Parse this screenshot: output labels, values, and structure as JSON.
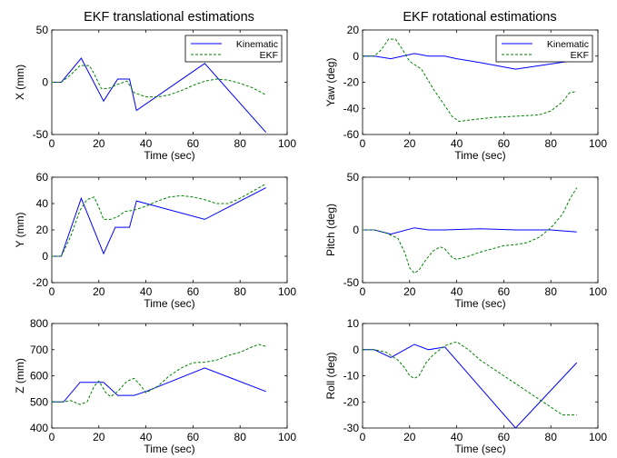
{
  "figure": {
    "titles": [
      "EKF translational estimations",
      "EKF rotational estimations"
    ]
  },
  "chart_data": [
    {
      "type": "line",
      "panel": "x-translation",
      "xlabel": "Time (sec)",
      "ylabel": "X (mm)",
      "xlim": [
        0,
        100
      ],
      "ylim": [
        -50,
        50
      ],
      "xticks": [
        0,
        20,
        40,
        60,
        80,
        100
      ],
      "yticks": [
        -50,
        0,
        50
      ],
      "legend": "top-right",
      "series": [
        {
          "name": "Kinematic",
          "color": "#0000ff",
          "style": "solid",
          "x": [
            0,
            4,
            12.5,
            22,
            28,
            33,
            36,
            65,
            91
          ],
          "y": [
            0,
            0,
            23,
            -18,
            3,
            3,
            -27,
            18,
            -48
          ]
        },
        {
          "name": "EKF",
          "color": "#008000",
          "style": "dashed",
          "x": [
            0,
            4,
            8,
            12,
            16,
            18,
            21,
            24,
            28,
            32,
            35,
            40,
            45,
            50,
            55,
            60,
            65,
            70,
            75,
            80,
            85,
            91
          ],
          "y": [
            0,
            0,
            7,
            16,
            16,
            8,
            -6,
            -6,
            -2,
            1,
            -10,
            -14,
            -14,
            -12,
            -8,
            -3,
            1,
            3,
            2,
            -1,
            -5,
            -12
          ]
        }
      ]
    },
    {
      "type": "line",
      "panel": "yaw-rotation",
      "xlabel": "Time (sec)",
      "ylabel": "Yaw (deg)",
      "xlim": [
        0,
        100
      ],
      "ylim": [
        -60,
        20
      ],
      "xticks": [
        0,
        20,
        40,
        60,
        80,
        100
      ],
      "yticks": [
        -60,
        -40,
        -20,
        0,
        20
      ],
      "legend": "top-right",
      "series": [
        {
          "name": "Kinematic",
          "color": "#0000ff",
          "style": "solid",
          "x": [
            0,
            5,
            12,
            22,
            28,
            35,
            40,
            50,
            65,
            80,
            91
          ],
          "y": [
            0,
            0,
            -2,
            2,
            0,
            0,
            -2,
            -5,
            -10,
            -6,
            -3
          ]
        },
        {
          "name": "EKF",
          "color": "#008000",
          "style": "dashed",
          "x": [
            0,
            5,
            8,
            11,
            14,
            17,
            20,
            25,
            30,
            35,
            38,
            41,
            45,
            55,
            65,
            75,
            80,
            85,
            88,
            91
          ],
          "y": [
            0,
            0,
            5,
            13,
            13,
            5,
            -4,
            -10,
            -25,
            -38,
            -46,
            -50,
            -49,
            -47,
            -46,
            -45,
            -42,
            -35,
            -28,
            -27
          ]
        }
      ]
    },
    {
      "type": "line",
      "panel": "y-translation",
      "xlabel": "Time (sec)",
      "ylabel": "Y (mm)",
      "xlim": [
        0,
        100
      ],
      "ylim": [
        -20,
        60
      ],
      "xticks": [
        0,
        20,
        40,
        60,
        80,
        100
      ],
      "yticks": [
        -20,
        0,
        20,
        40,
        60
      ],
      "series": [
        {
          "name": "Kinematic",
          "color": "#0000ff",
          "style": "solid",
          "x": [
            0,
            4,
            12.5,
            22,
            27,
            33,
            36,
            65,
            91
          ],
          "y": [
            0,
            0,
            44,
            2,
            22,
            22,
            42,
            28,
            52
          ]
        },
        {
          "name": "EKF",
          "color": "#008000",
          "style": "dashed",
          "x": [
            0,
            4,
            8,
            12,
            15,
            18,
            20,
            22,
            25,
            28,
            31,
            35,
            40,
            45,
            50,
            55,
            60,
            65,
            70,
            75,
            80,
            85,
            91
          ],
          "y": [
            0,
            0,
            15,
            35,
            43,
            45,
            37,
            28,
            28,
            30,
            34,
            35,
            38,
            42,
            45,
            46,
            45,
            43,
            40,
            40,
            44,
            49,
            55
          ]
        }
      ]
    },
    {
      "type": "line",
      "panel": "pitch-rotation",
      "xlabel": "Time (sec)",
      "ylabel": "Pitch (deg)",
      "xlim": [
        0,
        100
      ],
      "ylim": [
        -50,
        50
      ],
      "xticks": [
        0,
        20,
        40,
        60,
        80,
        100
      ],
      "yticks": [
        -50,
        0,
        50
      ],
      "series": [
        {
          "name": "Kinematic",
          "color": "#0000ff",
          "style": "solid",
          "x": [
            0,
            5,
            12,
            22,
            28,
            35,
            50,
            65,
            80,
            91
          ],
          "y": [
            0,
            0,
            -4,
            2,
            0,
            0,
            1,
            0,
            0,
            -2
          ]
        },
        {
          "name": "EKF",
          "color": "#008000",
          "style": "dashed",
          "x": [
            0,
            5,
            10,
            15,
            18,
            20,
            22,
            24,
            27,
            30,
            33,
            35,
            38,
            40,
            45,
            50,
            55,
            60,
            65,
            70,
            75,
            80,
            85,
            88,
            91
          ],
          "y": [
            0,
            0,
            -3,
            -8,
            -22,
            -36,
            -41,
            -38,
            -28,
            -20,
            -16,
            -18,
            -26,
            -28,
            -25,
            -21,
            -18,
            -15,
            -14,
            -12,
            -7,
            2,
            15,
            29,
            40
          ]
        }
      ]
    },
    {
      "type": "line",
      "panel": "z-translation",
      "xlabel": "Time (sec)",
      "ylabel": "Z (mm)",
      "xlim": [
        0,
        100
      ],
      "ylim": [
        400,
        800
      ],
      "xticks": [
        0,
        20,
        40,
        60,
        80,
        100
      ],
      "yticks": [
        400,
        500,
        600,
        700,
        800
      ],
      "series": [
        {
          "name": "Kinematic",
          "color": "#0000ff",
          "style": "solid",
          "x": [
            0,
            5,
            12,
            20,
            22,
            28,
            35,
            40,
            65,
            91
          ],
          "y": [
            500,
            500,
            575,
            575,
            575,
            525,
            525,
            540,
            630,
            540
          ]
        },
        {
          "name": "EKF",
          "color": "#008000",
          "style": "dashed",
          "x": [
            0,
            5,
            8,
            12,
            15,
            18,
            20,
            23,
            25,
            28,
            32,
            35,
            38,
            40,
            45,
            50,
            55,
            60,
            65,
            70,
            75,
            80,
            85,
            88,
            91
          ],
          "y": [
            500,
            500,
            505,
            490,
            500,
            560,
            580,
            535,
            520,
            540,
            580,
            590,
            560,
            535,
            560,
            600,
            630,
            650,
            652,
            660,
            678,
            690,
            710,
            720,
            712
          ]
        }
      ]
    },
    {
      "type": "line",
      "panel": "roll-rotation",
      "xlabel": "Time (sec)",
      "ylabel": "Roll (deg)",
      "xlim": [
        0,
        100
      ],
      "ylim": [
        -30,
        10
      ],
      "xticks": [
        0,
        20,
        40,
        60,
        80,
        100
      ],
      "yticks": [
        -30,
        -20,
        -10,
        0,
        10
      ],
      "series": [
        {
          "name": "Kinematic",
          "color": "#0000ff",
          "style": "solid",
          "x": [
            0,
            5,
            12,
            22,
            28,
            35,
            65,
            91
          ],
          "y": [
            0,
            0,
            -3,
            2,
            0,
            1,
            -30,
            -5
          ]
        },
        {
          "name": "EKF",
          "color": "#008000",
          "style": "dashed",
          "x": [
            0,
            5,
            10,
            15,
            18,
            20,
            22,
            24,
            27,
            30,
            35,
            40,
            45,
            50,
            55,
            60,
            65,
            70,
            75,
            80,
            85,
            88,
            91
          ],
          "y": [
            0,
            0,
            -1,
            -4,
            -7,
            -10,
            -11,
            -10,
            -5,
            -2,
            1.5,
            3,
            0,
            -4,
            -7,
            -10,
            -13,
            -16,
            -19,
            -22,
            -25,
            -25,
            -25
          ]
        }
      ]
    }
  ]
}
